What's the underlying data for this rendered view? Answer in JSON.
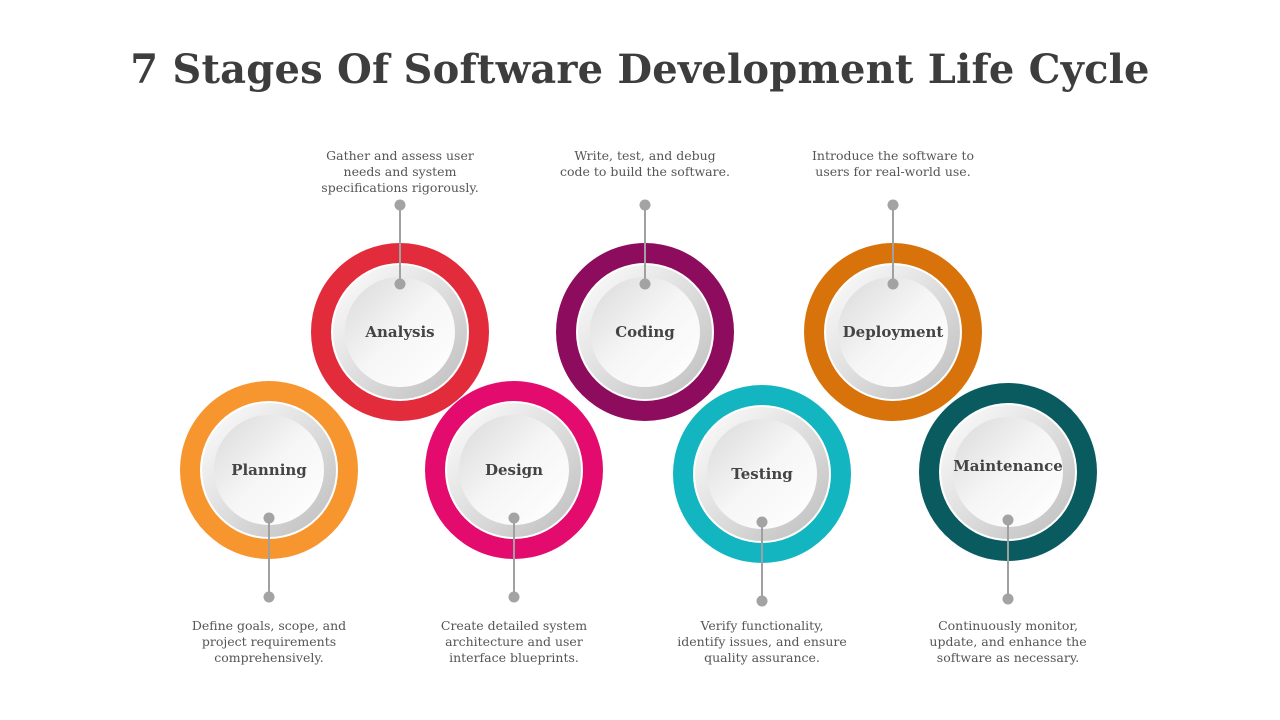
{
  "title": "7 Stages Of Software Development Life Cycle",
  "stages": [
    {
      "name": "Planning",
      "description": "Define goals, scope, and project requirements comprehensively.",
      "color": "#F7962F"
    },
    {
      "name": "Analysis",
      "description": "Gather and assess user needs and system specifications rigorously.",
      "color": "#E22B3B"
    },
    {
      "name": "Design",
      "description": "Create detailed system architecture and user interface blueprints.",
      "color": "#E30B6E"
    },
    {
      "name": "Coding",
      "description": "Write, test, and debug code to build the software.",
      "color": "#8E0C5E"
    },
    {
      "name": "Testing",
      "description": "Verify functionality, identify issues, and ensure quality assurance.",
      "color": "#13B6C0"
    },
    {
      "name": "Deployment",
      "description": "Introduce the software to users for real-world use.",
      "color": "#D8720A"
    },
    {
      "name": "Maintenance",
      "description": "Continuously monitor, update, and enhance the software as necessary.",
      "color": "#0A5B5F"
    }
  ]
}
